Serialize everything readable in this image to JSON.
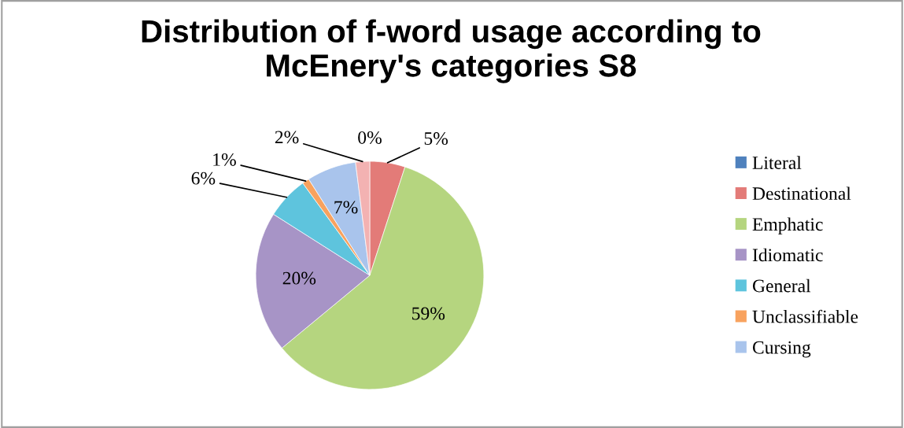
{
  "chart_data": {
    "type": "pie",
    "title": "Distribution of f-word usage according to McEnery's categories S8",
    "categories": [
      "Literal",
      "Destinational",
      "Emphatic",
      "Idiomatic",
      "General",
      "Unclassifiable",
      "Cursing",
      null
    ],
    "values": [
      0,
      5,
      59,
      20,
      6,
      1,
      7,
      2
    ],
    "colors": [
      "#4f81bd",
      "#e37b78",
      "#b5d57f",
      "#a794c6",
      "#5ec4dd",
      "#f8a25e",
      "#a9c4ec",
      "#f3b2b2"
    ],
    "data_labels": true,
    "value_labels": [
      "0%",
      "5%",
      "59%",
      "20%",
      "6%",
      "1%",
      "7%",
      "2%"
    ],
    "legend": "right"
  }
}
